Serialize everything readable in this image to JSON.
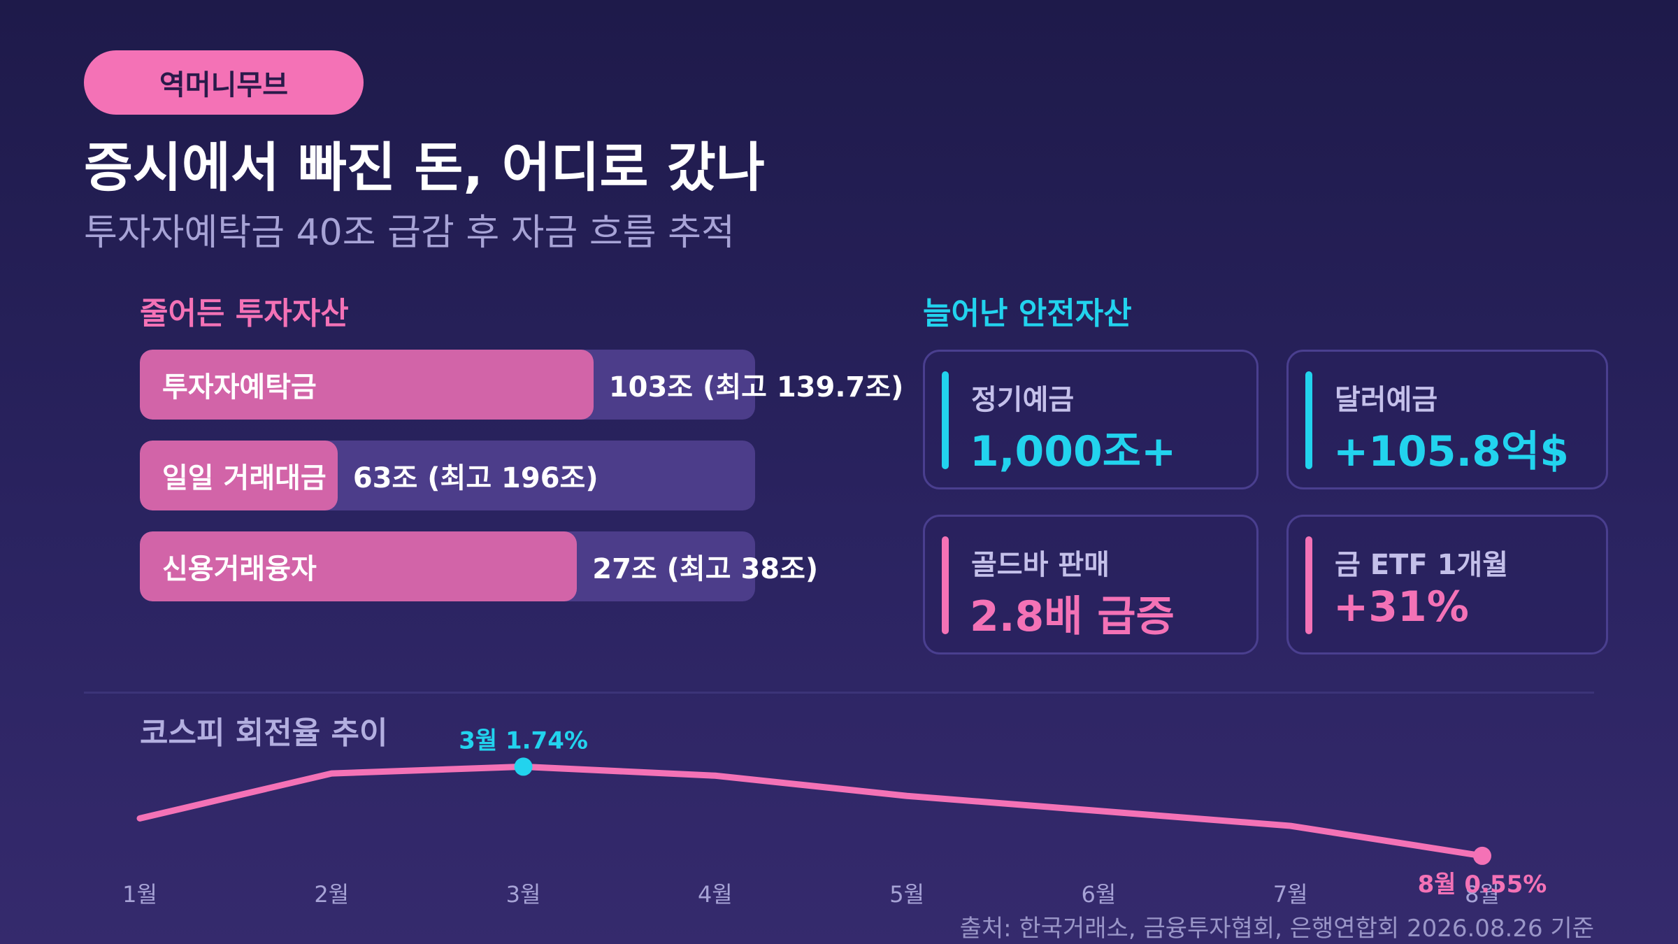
{
  "header": {
    "badge": "역머니무브",
    "title": "증시에서 빠진 돈, 어디로 갔나",
    "subtitle": "투자자예탁금 40조 급감 후 자금 흐름 추적"
  },
  "left_section": {
    "heading": "줄어든 투자자산",
    "bars": [
      {
        "label": "투자자예탁금",
        "value_text": "103조 (최고 139.7조)",
        "value": 103,
        "max": 139.7,
        "unit": "조"
      },
      {
        "label": "일일 거래대금",
        "value_text": "63조 (최고 196조)",
        "value": 63,
        "max": 196,
        "unit": "조"
      },
      {
        "label": "신용거래융자",
        "value_text": "27조 (최고 38조)",
        "value": 27,
        "max": 38,
        "unit": "조"
      }
    ]
  },
  "right_section": {
    "heading": "늘어난 안전자산",
    "cards": [
      {
        "label": "정기예금",
        "value": "1,000조+",
        "color": "#22d3ee"
      },
      {
        "label": "달러예금",
        "value": "+105.8억$",
        "color": "#22d3ee"
      },
      {
        "label": "골드바 판매",
        "value": "2.8배 급증",
        "color": "#f472b6"
      },
      {
        "label": "금 ETF 1개월",
        "value": "+31%",
        "color": "#f472b6"
      }
    ]
  },
  "chart_data": {
    "type": "line",
    "title": "코스피 회전율 추이",
    "x": [
      "1월",
      "2월",
      "3월",
      "4월",
      "5월",
      "6월",
      "7월",
      "8월"
    ],
    "series": [
      {
        "values": [
          1.05,
          1.65,
          1.74,
          1.62,
          1.35,
          1.15,
          0.95,
          0.55
        ]
      }
    ],
    "annotations": [
      {
        "index": 2,
        "text": "3월 1.74%",
        "color": "#22d3ee"
      },
      {
        "index": 7,
        "text": "8월 0.55%",
        "color": "#f472b6"
      }
    ],
    "ylim": [
      0.4,
      1.8
    ],
    "line_color": "#f472b6",
    "grid": false
  },
  "footer": {
    "source": "출처: 한국거래소, 금융투자협회, 은행연합회 2026.08.26 기준"
  },
  "colors": {
    "accent_pink": "#f472b6",
    "accent_cyan": "#22d3ee",
    "bar_fill": "#d264a8",
    "bar_track": "#4c3d8a"
  }
}
